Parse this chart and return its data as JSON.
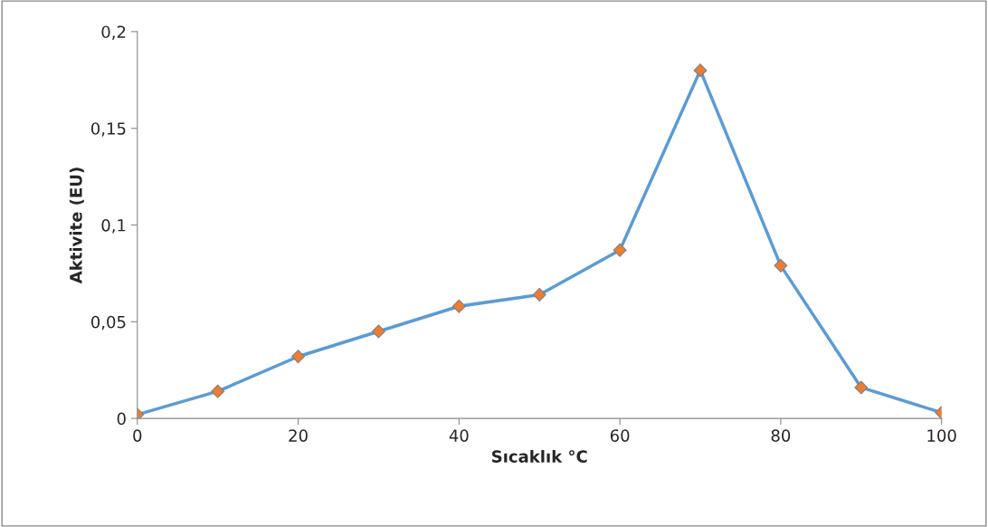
{
  "chart_data": {
    "type": "line",
    "xlabel": "Sıcaklık °C",
    "ylabel": "Aktivite (EU)",
    "x": [
      0,
      10,
      20,
      30,
      40,
      50,
      60,
      70,
      80,
      90,
      100
    ],
    "series": [
      {
        "color": "#5b9bd5",
        "values": [
          0.002,
          0.014,
          0.032,
          0.045,
          0.058,
          0.064,
          0.087,
          0.18,
          0.079,
          0.016,
          0.003
        ]
      }
    ],
    "xlim": [
      0,
      100
    ],
    "xticks": [
      0,
      20,
      40,
      60,
      80,
      100
    ],
    "ylim": [
      0,
      0.2
    ],
    "yticks": [
      0,
      {
        "value": 0.05,
        "label": "0,05"
      },
      {
        "value": 0.1,
        "label": "0,1"
      },
      {
        "value": 0.15,
        "label": "0,15"
      },
      {
        "value": 0.2,
        "label": "0,2"
      }
    ],
    "marker": "diamond",
    "line_style": "solid",
    "grid": false,
    "legend": false
  }
}
